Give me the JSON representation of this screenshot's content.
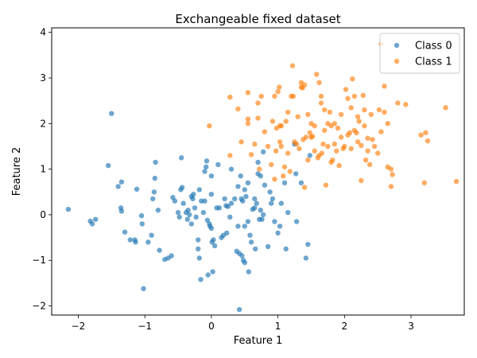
{
  "chart_data": {
    "type": "scatter",
    "title": "Exchangeable fixed dataset",
    "xlabel": "Feature 1",
    "ylabel": "Feature 2",
    "xlim": [
      -2.4,
      3.8
    ],
    "ylim": [
      -2.2,
      4.1
    ],
    "xticks": [
      -2,
      -1,
      0,
      1,
      2,
      3
    ],
    "yticks": [
      -2,
      -1,
      0,
      1,
      2,
      3,
      4
    ],
    "grid": false,
    "legend_position": "top-right",
    "series": [
      {
        "name": "Class 0",
        "color": "#1f77b4",
        "points": [
          [
            -2.15,
            0.12
          ],
          [
            -1.82,
            -0.14
          ],
          [
            -1.79,
            -0.2
          ],
          [
            -1.74,
            -0.1
          ],
          [
            -1.55,
            1.08
          ],
          [
            -1.5,
            2.22
          ],
          [
            -1.4,
            0.62
          ],
          [
            -1.35,
            0.72
          ],
          [
            -1.36,
            0.15
          ],
          [
            -1.35,
            0.08
          ],
          [
            -1.3,
            -0.38
          ],
          [
            -1.22,
            -0.55
          ],
          [
            -1.15,
            -0.55
          ],
          [
            -1.14,
            -0.6
          ],
          [
            -1.12,
            0.56
          ],
          [
            -1.05,
            -0.02
          ],
          [
            -1.04,
            -0.2
          ],
          [
            -1.02,
            -1.62
          ],
          [
            -0.95,
            -0.6
          ],
          [
            -0.9,
            -0.45
          ],
          [
            -0.88,
            0.35
          ],
          [
            -0.86,
            0.5
          ],
          [
            -0.85,
            0.8
          ],
          [
            -0.84,
            1.15
          ],
          [
            -0.8,
            0.1
          ],
          [
            -0.78,
            -0.78
          ],
          [
            -0.7,
            -0.98
          ],
          [
            -0.65,
            -0.95
          ],
          [
            -0.6,
            -0.9
          ],
          [
            -0.58,
            0.38
          ],
          [
            -0.55,
            0.3
          ],
          [
            -0.5,
            0.05
          ],
          [
            -0.48,
            -0.05
          ],
          [
            -0.46,
            0.55
          ],
          [
            -0.45,
            1.25
          ],
          [
            -0.44,
            0.6
          ],
          [
            -0.42,
            0.25
          ],
          [
            -0.38,
            0.05
          ],
          [
            -0.36,
            -0.1
          ],
          [
            -0.35,
            0.1
          ],
          [
            -0.33,
            0.0
          ],
          [
            -0.3,
            -0.2
          ],
          [
            -0.3,
            0.4
          ],
          [
            -0.28,
            0.35
          ],
          [
            -0.27,
            0.45
          ],
          [
            -0.25,
            0.15
          ],
          [
            -0.23,
            -0.05
          ],
          [
            -0.2,
            -0.55
          ],
          [
            -0.2,
            -0.75
          ],
          [
            -0.18,
            -0.95
          ],
          [
            -0.18,
            0.55
          ],
          [
            -0.16,
            -1.42
          ],
          [
            -0.15,
            0.3
          ],
          [
            -0.12,
            0.05
          ],
          [
            -0.1,
            0.3
          ],
          [
            -0.1,
            0.95
          ],
          [
            -0.08,
            1.05
          ],
          [
            -0.07,
            1.18
          ],
          [
            -0.06,
            -0.12
          ],
          [
            -0.05,
            -1.32
          ],
          [
            -0.03,
            -0.2
          ],
          [
            -0.02,
            -0.25
          ],
          [
            0.0,
            -0.3
          ],
          [
            0.0,
            0.45
          ],
          [
            0.0,
            0.85
          ],
          [
            0.01,
            -0.6
          ],
          [
            0.02,
            -1.25
          ],
          [
            0.03,
            -0.55
          ],
          [
            0.05,
            -0.68
          ],
          [
            0.08,
            0.15
          ],
          [
            0.1,
            1.1
          ],
          [
            0.12,
            0.15
          ],
          [
            0.15,
            -0.5
          ],
          [
            0.18,
            -0.45
          ],
          [
            0.2,
            0.35
          ],
          [
            0.22,
            0.2
          ],
          [
            0.23,
            -0.4
          ],
          [
            0.25,
            0.18
          ],
          [
            0.28,
            -0.05
          ],
          [
            0.3,
            0.25
          ],
          [
            0.3,
            1.0
          ],
          [
            0.35,
            0.35
          ],
          [
            0.38,
            -0.8
          ],
          [
            0.4,
            -0.25
          ],
          [
            0.4,
            0.62
          ],
          [
            0.42,
            -0.85
          ],
          [
            0.42,
            -2.08
          ],
          [
            0.44,
            0.85
          ],
          [
            0.45,
            0.35
          ],
          [
            0.46,
            -0.9
          ],
          [
            0.47,
            0.3
          ],
          [
            0.48,
            -1.0
          ],
          [
            0.5,
            -1.05
          ],
          [
            0.5,
            -0.25
          ],
          [
            0.5,
            0.55
          ],
          [
            0.52,
            0.4
          ],
          [
            0.55,
            -0.15
          ],
          [
            0.55,
            0.7
          ],
          [
            0.56,
            -1.25
          ],
          [
            0.58,
            -0.45
          ],
          [
            0.6,
            -0.6
          ],
          [
            0.62,
            0.12
          ],
          [
            0.65,
            0.15
          ],
          [
            0.65,
            0.35
          ],
          [
            0.66,
            -0.75
          ],
          [
            0.68,
            0.25
          ],
          [
            0.7,
            0.9
          ],
          [
            0.7,
            1.15
          ],
          [
            0.72,
            -0.1
          ],
          [
            0.74,
            0.85
          ],
          [
            0.74,
            0.1
          ],
          [
            0.76,
            -0.1
          ],
          [
            0.78,
            0.0
          ],
          [
            0.78,
            1.38
          ],
          [
            0.8,
            0.65
          ],
          [
            0.85,
            -0.7
          ],
          [
            0.88,
            0.5
          ],
          [
            0.9,
            0.25
          ],
          [
            0.92,
            0.35
          ],
          [
            0.95,
            -0.15
          ],
          [
            1.0,
            -0.4
          ],
          [
            1.03,
            -0.25
          ],
          [
            1.05,
            0.25
          ],
          [
            1.1,
            0.7
          ],
          [
            1.12,
            -0.75
          ],
          [
            1.15,
            0.05
          ],
          [
            1.25,
            1.55
          ],
          [
            1.27,
            0.9
          ],
          [
            1.28,
            -0.15
          ],
          [
            1.35,
            0.7
          ],
          [
            1.42,
            -0.95
          ],
          [
            1.45,
            -0.65
          ],
          [
            1.48,
            1.3
          ]
        ]
      },
      {
        "name": "Class 1",
        "color": "#ff7f0e",
        "points": [
          [
            -0.03,
            1.95
          ],
          [
            0.28,
            1.3
          ],
          [
            0.28,
            2.58
          ],
          [
            0.4,
            2.32
          ],
          [
            0.45,
            1.6
          ],
          [
            0.55,
            2.1
          ],
          [
            0.55,
            2.0
          ],
          [
            0.55,
            2.68
          ],
          [
            0.6,
            1.32
          ],
          [
            0.65,
            1.55
          ],
          [
            0.7,
            2.12
          ],
          [
            0.7,
            2.45
          ],
          [
            0.72,
            1.0
          ],
          [
            0.75,
            2.6
          ],
          [
            0.8,
            1.82
          ],
          [
            0.85,
            1.5
          ],
          [
            0.9,
            1.1
          ],
          [
            0.92,
            2.05
          ],
          [
            0.95,
            0.78
          ],
          [
            0.95,
            2.6
          ],
          [
            0.97,
            1.4
          ],
          [
            0.98,
            1.9
          ],
          [
            1.0,
            2.7
          ],
          [
            1.02,
            2.8
          ],
          [
            1.03,
            1.95
          ],
          [
            1.03,
            1.6
          ],
          [
            1.05,
            1.5
          ],
          [
            1.05,
            1.95
          ],
          [
            1.08,
            0.85
          ],
          [
            1.1,
            1.05
          ],
          [
            1.12,
            2.05
          ],
          [
            1.15,
            2.25
          ],
          [
            1.15,
            1.35
          ],
          [
            1.18,
            0.95
          ],
          [
            1.2,
            2.6
          ],
          [
            1.22,
            3.27
          ],
          [
            1.23,
            2.6
          ],
          [
            1.25,
            1.6
          ],
          [
            1.28,
            1.55
          ],
          [
            1.3,
            2.15
          ],
          [
            1.32,
            1.45
          ],
          [
            1.35,
            2.8
          ],
          [
            1.35,
            2.9
          ],
          [
            1.37,
            2.78
          ],
          [
            1.38,
            1.65
          ],
          [
            1.4,
            2.85
          ],
          [
            1.4,
            0.6
          ],
          [
            1.42,
            1.7
          ],
          [
            1.45,
            1.2
          ],
          [
            1.45,
            2.2
          ],
          [
            1.48,
            1.8
          ],
          [
            1.5,
            2.0
          ],
          [
            1.5,
            1.7
          ],
          [
            1.52,
            1.72
          ],
          [
            1.55,
            1.4
          ],
          [
            1.55,
            1.95
          ],
          [
            1.58,
            3.08
          ],
          [
            1.6,
            1.25
          ],
          [
            1.62,
            2.9
          ],
          [
            1.62,
            1.3
          ],
          [
            1.65,
            2.6
          ],
          [
            1.65,
            2.45
          ],
          [
            1.66,
            1.35
          ],
          [
            1.68,
            1.55
          ],
          [
            1.7,
            2.3
          ],
          [
            1.7,
            1.85
          ],
          [
            1.72,
            0.65
          ],
          [
            1.75,
            2.0
          ],
          [
            1.75,
            1.5
          ],
          [
            1.78,
            2.25
          ],
          [
            1.8,
            1.15
          ],
          [
            1.8,
            1.95
          ],
          [
            1.82,
            1.2
          ],
          [
            1.85,
            1.55
          ],
          [
            1.85,
            2.0
          ],
          [
            1.88,
            1.4
          ],
          [
            1.9,
            1.9
          ],
          [
            1.92,
            1.08
          ],
          [
            1.95,
            1.7
          ],
          [
            1.95,
            2.2
          ],
          [
            1.98,
            1.45
          ],
          [
            2.0,
            1.5
          ],
          [
            2.02,
            2.75
          ],
          [
            2.05,
            1.75
          ],
          [
            2.05,
            2.55
          ],
          [
            2.08,
            1.8
          ],
          [
            2.1,
            1.45
          ],
          [
            2.1,
            2.35
          ],
          [
            2.12,
            2.98
          ],
          [
            2.15,
            1.85
          ],
          [
            2.15,
            2.6
          ],
          [
            2.18,
            1.8
          ],
          [
            2.2,
            1.6
          ],
          [
            2.2,
            2.15
          ],
          [
            2.22,
            2.05
          ],
          [
            2.25,
            1.52
          ],
          [
            2.25,
            0.75
          ],
          [
            2.28,
            2.62
          ],
          [
            2.3,
            2.3
          ],
          [
            2.3,
            1.95
          ],
          [
            2.32,
            1.2
          ],
          [
            2.35,
            1.4
          ],
          [
            2.35,
            1.68
          ],
          [
            2.38,
            1.1
          ],
          [
            2.4,
            2.2
          ],
          [
            2.42,
            1.65
          ],
          [
            2.45,
            1.5
          ],
          [
            2.5,
            1.35
          ],
          [
            2.52,
            2.3
          ],
          [
            2.55,
            3.75
          ],
          [
            2.55,
            1.82
          ],
          [
            2.6,
            2.25
          ],
          [
            2.6,
            2.82
          ],
          [
            2.65,
            1.05
          ],
          [
            2.65,
            2.0
          ],
          [
            2.7,
            1.0
          ],
          [
            2.7,
            0.62
          ],
          [
            2.72,
            0.88
          ],
          [
            2.8,
            2.45
          ],
          [
            2.92,
            2.42
          ],
          [
            3.15,
            1.75
          ],
          [
            3.2,
            0.7
          ],
          [
            3.22,
            1.8
          ],
          [
            3.25,
            1.62
          ],
          [
            3.52,
            2.35
          ],
          [
            3.68,
            0.73
          ]
        ]
      }
    ]
  }
}
